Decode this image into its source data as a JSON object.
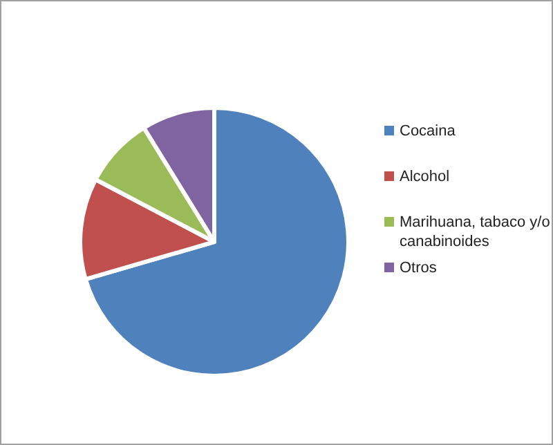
{
  "chart_data": {
    "type": "pie",
    "categories": [
      "Cocaina",
      "Alcohol",
      "Marihuana, tabaco y/o canabinoides",
      "Otros"
    ],
    "values": [
      70.5,
      12.2,
      8.5,
      8.8
    ],
    "colors": [
      "#4f81bd",
      "#c0504d",
      "#9bbb59",
      "#8064a2"
    ],
    "legend": "right"
  }
}
